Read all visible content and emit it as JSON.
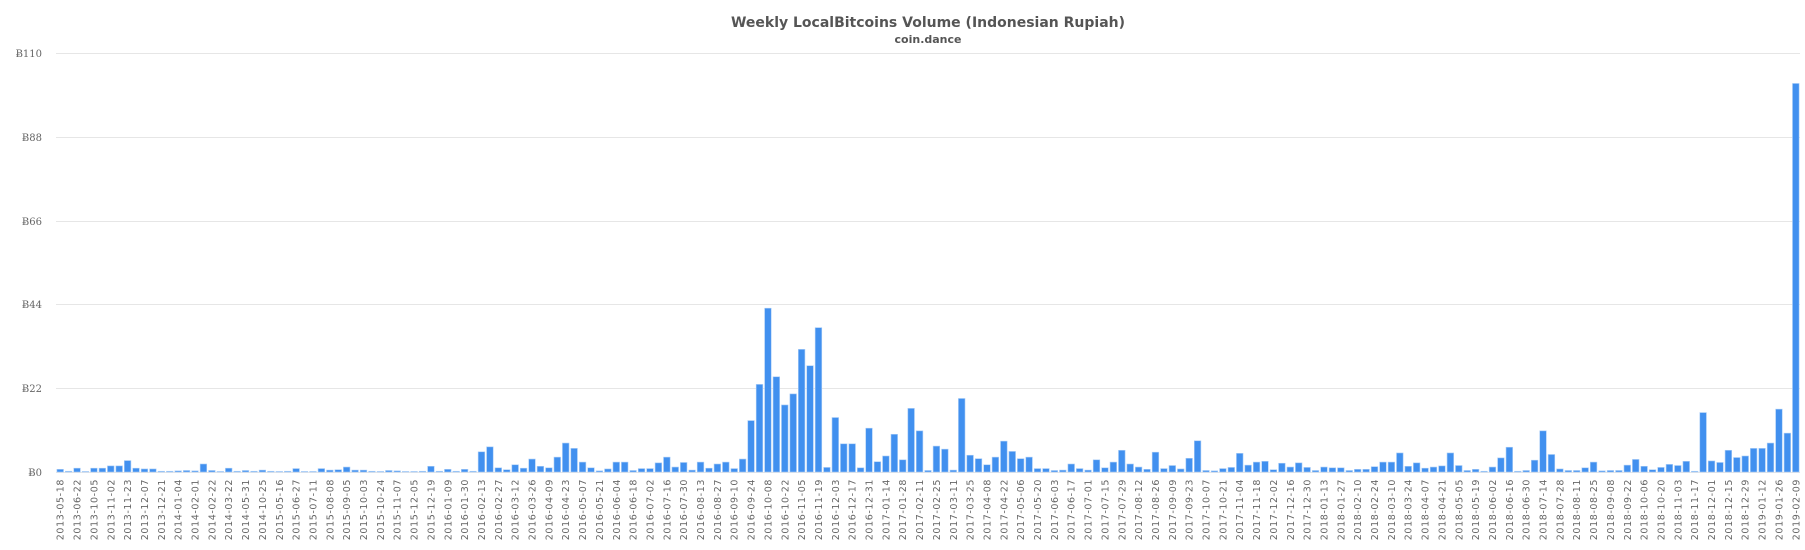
{
  "chart_data": {
    "type": "bar",
    "title": "Weekly LocalBitcoins Volume (Indonesian Rupiah)",
    "subtitle": "coin.dance",
    "xlabel": "",
    "ylabel": "",
    "ylim": [
      0,
      110
    ],
    "grid": true,
    "legend": "none",
    "bar_color": "#4190ef",
    "y_ticks": [
      0,
      22,
      44,
      66,
      88,
      110
    ],
    "y_tick_labels": [
      "Ƀ0",
      "Ƀ22",
      "Ƀ44",
      "Ƀ66",
      "Ƀ88",
      "Ƀ110"
    ],
    "x_tick_labels": [
      "2013-05-18",
      "2013-06-22",
      "2013-10-05",
      "2013-11-02",
      "2013-11-23",
      "2013-12-07",
      "2013-12-21",
      "2014-01-04",
      "2014-02-01",
      "2014-02-22",
      "2014-03-22",
      "2014-05-31",
      "2014-10-25",
      "2015-05-16",
      "2015-06-27",
      "2015-07-11",
      "2015-08-08",
      "2015-09-05",
      "2015-10-03",
      "2015-10-24",
      "2015-11-07",
      "2015-12-05",
      "2015-12-19",
      "2016-01-09",
      "2016-01-30",
      "2016-02-13",
      "2016-02-27",
      "2016-03-12",
      "2016-03-26",
      "2016-04-09",
      "2016-04-23",
      "2016-05-07",
      "2016-05-21",
      "2016-06-04",
      "2016-06-18",
      "2016-07-02",
      "2016-07-16",
      "2016-07-30",
      "2016-08-13",
      "2016-08-27",
      "2016-09-10",
      "2016-09-24",
      "2016-10-08",
      "2016-10-22",
      "2016-11-05",
      "2016-11-19",
      "2016-12-03",
      "2016-12-17",
      "2016-12-31",
      "2017-01-14",
      "2017-01-28",
      "2017-02-11",
      "2017-02-25",
      "2017-03-11",
      "2017-03-25",
      "2017-04-08",
      "2017-04-22",
      "2017-05-06",
      "2017-05-20",
      "2017-06-03",
      "2017-06-17",
      "2017-07-01",
      "2017-07-15",
      "2017-07-29",
      "2017-08-12",
      "2017-08-26",
      "2017-09-09",
      "2017-09-23",
      "2017-10-07",
      "2017-10-21",
      "2017-11-04",
      "2017-11-18",
      "2017-12-02",
      "2017-12-16",
      "2017-12-30",
      "2018-01-13",
      "2018-01-27",
      "2018-02-10",
      "2018-02-24",
      "2018-03-10",
      "2018-03-24",
      "2018-04-07",
      "2018-04-21",
      "2018-05-05",
      "2018-05-19",
      "2018-06-02",
      "2018-06-16",
      "2018-06-30",
      "2018-07-14",
      "2018-07-28",
      "2018-08-11",
      "2018-08-25",
      "2018-09-08",
      "2018-09-22",
      "2018-10-06",
      "2018-10-20",
      "2018-11-03",
      "2018-11-17",
      "2018-12-01",
      "2018-12-15",
      "2018-12-29",
      "2019-01-12",
      "2019-01-26",
      "2019-02-09"
    ],
    "values": [
      0.7,
      0.2,
      1.0,
      0.1,
      1.0,
      1.0,
      1.6,
      1.6,
      3.0,
      1.0,
      0.8,
      0.8,
      0.2,
      0.2,
      0.3,
      0.4,
      0.3,
      2.1,
      0.4,
      0,
      1.0,
      0.2,
      0.4,
      0.2,
      0.5,
      0.2,
      0,
      0.2,
      0.9,
      0.1,
      0.1,
      0.9,
      0.5,
      0.6,
      1.3,
      0.5,
      0.5,
      0.2,
      0,
      0.4,
      0.3,
      0,
      0,
      0.2,
      1.5,
      0.2,
      0.7,
      0.2,
      0.7,
      0.2,
      5.3,
      6.6,
      1.1,
      0.6,
      1.9,
      1.0,
      3.4,
      1.5,
      1.1,
      3.9,
      7.6,
      6.2,
      2.6,
      1.1,
      0.3,
      0.8,
      2.6,
      2.6,
      0.4,
      0.9,
      0.9,
      2.4,
      3.9,
      1.3,
      2.5,
      0.5,
      2.6,
      1.0,
      2.1,
      2.6,
      0.9,
      3.4,
      13.5,
      23.0,
      43.0,
      25.0,
      17.6,
      20.5,
      32.2,
      27.9,
      37.9,
      1.2,
      14.3,
      7.4,
      7.4,
      1.1,
      11.5,
      2.7,
      4.2,
      9.9,
      3.2,
      16.7,
      10.8,
      0.4,
      6.8,
      6.0,
      0.5,
      19.3,
      4.4,
      3.5,
      1.9,
      3.9,
      8.1,
      5.4,
      3.5,
      3.9,
      0.9,
      0.9,
      0.4,
      0.5,
      2.1,
      0.9,
      0.5,
      3.2,
      1.1,
      2.6,
      5.7,
      2.1,
      1.3,
      0.7,
      5.2,
      0.9,
      1.7,
      0.8,
      3.6,
      8.2,
      0.4,
      0.3,
      0.9,
      1.2,
      4.9,
      1.8,
      2.6,
      2.8,
      0.6,
      2.3,
      1.3,
      2.4,
      1.2,
      0.4,
      1.3,
      1.1,
      1.1,
      0.4,
      0.7,
      0.7,
      1.4,
      2.6,
      2.6,
      5.0,
      1.5,
      2.4,
      1.0,
      1.3,
      1.6,
      5.0,
      1.7,
      0.4,
      0.7,
      0.2,
      1.3,
      3.7,
      6.5,
      0.2,
      0.4,
      3.1,
      10.8,
      4.6,
      0.8,
      0.4,
      0.4,
      1.1,
      2.6,
      0.3,
      0.4,
      0.4,
      1.8,
      3.3,
      1.5,
      0.6,
      1.2,
      2.0,
      1.7,
      2.8,
      0.2,
      15.6,
      2.9,
      2.5,
      5.7,
      3.8,
      4.2,
      6.2,
      6.2,
      7.6,
      16.5,
      10.2,
      102.0
    ]
  }
}
